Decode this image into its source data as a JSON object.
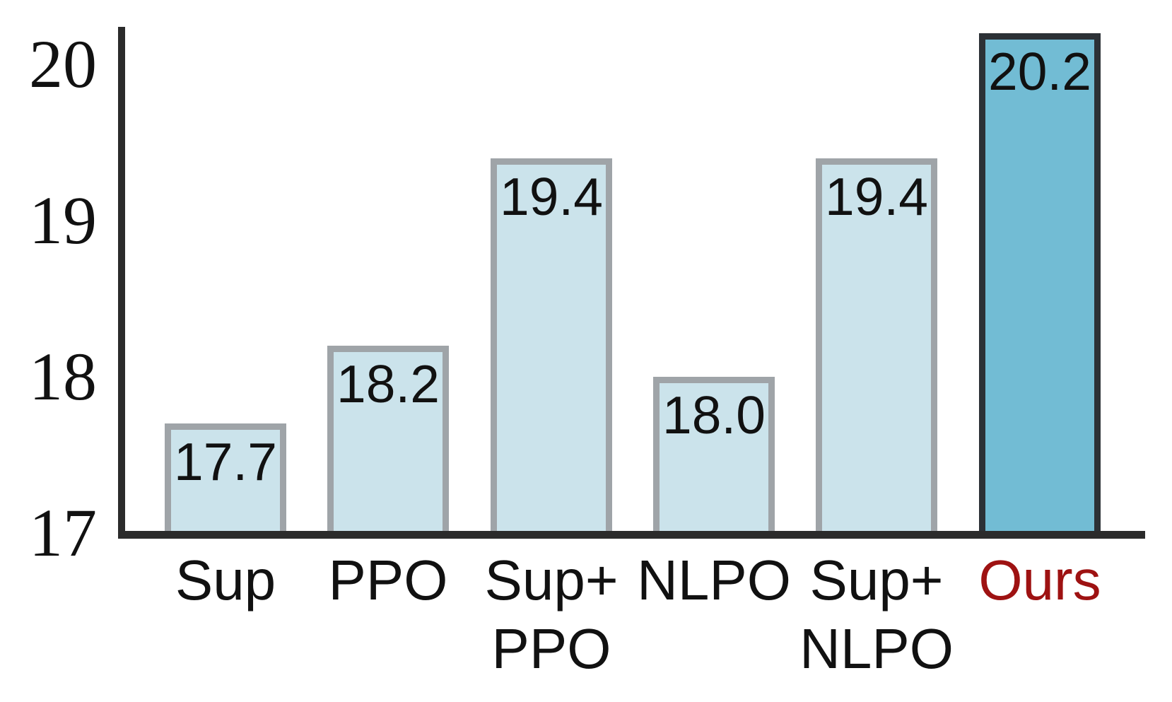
{
  "figure": {
    "background": "#ffffff"
  },
  "chart_data": {
    "type": "bar",
    "categories": [
      "Sup",
      "PPO",
      "Sup+\nPPO",
      "NLPO",
      "Sup+\nNLPO",
      "Ours"
    ],
    "values": [
      17.7,
      18.2,
      19.4,
      18.0,
      19.4,
      20.2
    ],
    "value_labels": [
      "17.7",
      "18.2",
      "19.4",
      "18.0",
      "19.4",
      "20.2"
    ],
    "title": "",
    "xlabel": "",
    "ylabel": "",
    "ylim": [
      17,
      20.25
    ],
    "yticks": [
      17,
      18,
      19,
      20
    ],
    "ytick_labels": [
      "17",
      "18",
      "19",
      "20"
    ],
    "grid": false,
    "legend": "none",
    "highlight_index": 5,
    "colors": {
      "bar_fill": "#cbe3eb",
      "bar_border": "#9fa4a8",
      "highlight_fill": "#72bcd4",
      "highlight_border": "#2c3136",
      "highlight_label": "#9e1212",
      "axis": "#2b2b2b",
      "label_text": "#111111"
    }
  }
}
